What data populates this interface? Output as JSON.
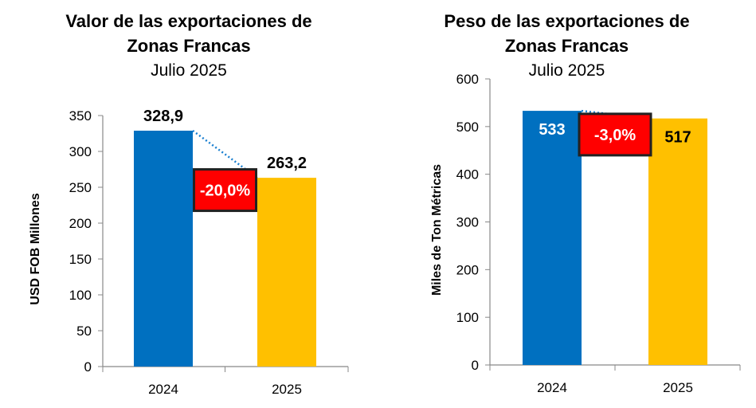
{
  "chart_data": [
    {
      "type": "bar",
      "title_line1": "Valor de las exportaciones de",
      "title_line2": "Zonas Francas",
      "subtitle": "Julio 2025",
      "ylabel": "USD FOB Millones",
      "xlabel": "",
      "categories": [
        "2024",
        "2025"
      ],
      "values": [
        328.9,
        263.2
      ],
      "value_labels": [
        "328,9",
        "263,2"
      ],
      "label_position": "above",
      "label_colors": [
        "#000000",
        "#000000"
      ],
      "bar_colors": [
        "#0070C0",
        "#FFC000"
      ],
      "ylim": [
        0,
        350
      ],
      "yticks": [
        0,
        50,
        100,
        150,
        200,
        250,
        300,
        350
      ],
      "grid": false,
      "change_label": "-20,0%",
      "change_color": "#FF0000"
    },
    {
      "type": "bar",
      "title_line1": "Peso de las exportaciones de",
      "title_line2": "Zonas Francas",
      "subtitle": "Julio 2025",
      "ylabel": "Miles de Ton Métricas",
      "xlabel": "",
      "categories": [
        "2024",
        "2025"
      ],
      "values": [
        533,
        517
      ],
      "value_labels": [
        "533",
        "517"
      ],
      "label_position": "inside",
      "label_colors": [
        "#ffffff",
        "#000000"
      ],
      "bar_colors": [
        "#0070C0",
        "#FFC000"
      ],
      "ylim": [
        0,
        600
      ],
      "yticks": [
        0,
        100,
        200,
        300,
        400,
        500,
        600
      ],
      "grid": false,
      "change_label": "-3,0%",
      "change_color": "#FF0000"
    }
  ]
}
